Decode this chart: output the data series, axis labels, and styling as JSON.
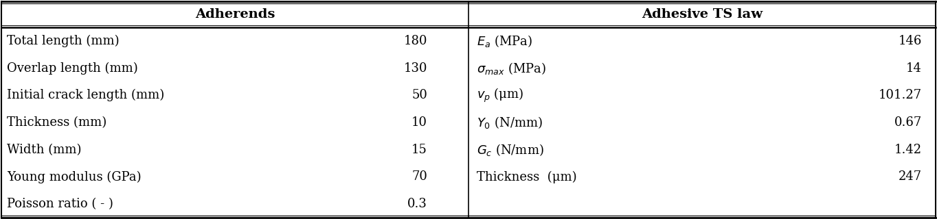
{
  "header_left": "Adherends",
  "header_right": "Adhesive TS law",
  "left_rows": [
    [
      "Total length (mm)",
      "180"
    ],
    [
      "Overlap length (mm)",
      "130"
    ],
    [
      "Initial crack length (mm)",
      "50"
    ],
    [
      "Thickness (mm)",
      "10"
    ],
    [
      "Width (mm)",
      "15"
    ],
    [
      "Young modulus (GPa)",
      "70"
    ],
    [
      "Poisson ratio ( - )",
      "0.3"
    ]
  ],
  "right_rows": [
    [
      "$E_a$ (MPa)",
      "146"
    ],
    [
      "$\\sigma_{max}$ (MPa)",
      "14"
    ],
    [
      "$v_p$ (μm)",
      "101.27"
    ],
    [
      "$Y_0$ (N/mm)",
      "0.67"
    ],
    [
      "$G_c$ (N/mm)",
      "1.42"
    ],
    [
      "Thickness  (μm)",
      "247"
    ],
    [
      "",
      ""
    ]
  ],
  "bg_color": "#ffffff",
  "line_color": "#000000",
  "text_color": "#000000",
  "font_size": 13,
  "header_font_size": 14
}
